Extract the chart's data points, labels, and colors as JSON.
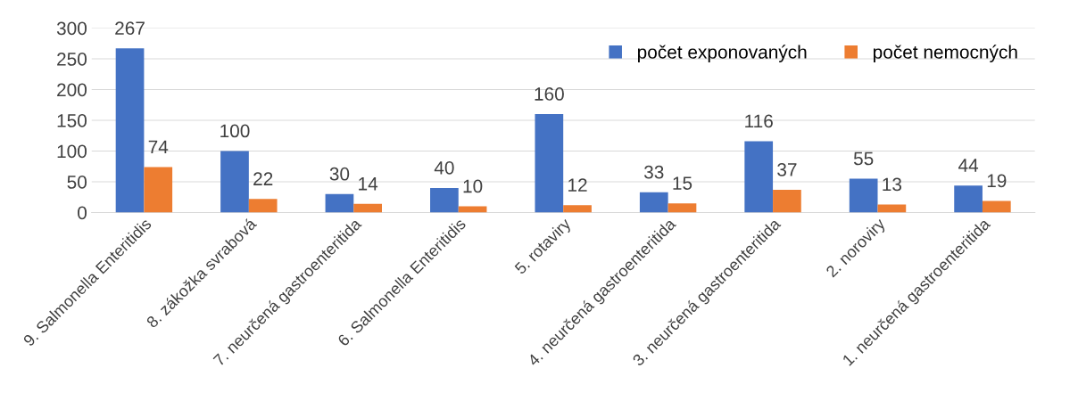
{
  "chart_data": {
    "type": "bar",
    "categories": [
      "9. Salmonella Enteritidis",
      "8. zákožka svrabová",
      "7. neurčená gastroenteritida",
      "6. Salmonella Enteritidis",
      "5. rotaviry",
      "4. neurčená gastroenteritida",
      "3. neurčená gastroenteritida",
      "2. noroviry",
      "1. neurčená gastroenteritida"
    ],
    "series": [
      {
        "name": "počet exponovaných",
        "color": "#4472c4",
        "values": [
          267,
          100,
          30,
          40,
          160,
          33,
          116,
          55,
          44
        ]
      },
      {
        "name": "počet nemocných",
        "color": "#ed7d31",
        "values": [
          74,
          22,
          14,
          10,
          12,
          15,
          37,
          13,
          19
        ]
      }
    ],
    "ylim": [
      0,
      300
    ],
    "yticks": [
      0,
      50,
      100,
      150,
      200,
      250,
      300
    ],
    "grid": "y",
    "legend": "top right",
    "data_labels": true
  }
}
